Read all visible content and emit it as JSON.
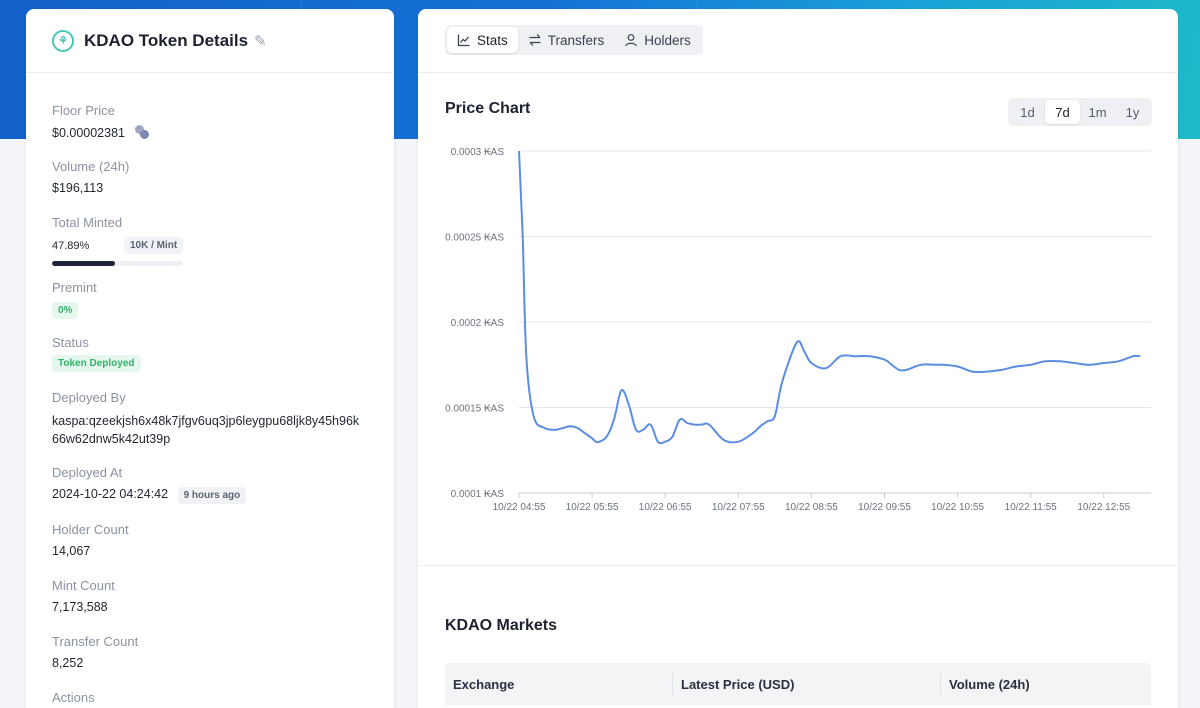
{
  "left": {
    "title": "KDAO Token Details",
    "floor_price": {
      "label": "Floor Price",
      "value": "$0.00002381"
    },
    "volume": {
      "label": "Volume (24h)",
      "value": "$196,113"
    },
    "total_minted": {
      "label": "Total Minted",
      "percent": "47.89%",
      "fraction": 0.4789,
      "badge": "10K / Mint"
    },
    "premint": {
      "label": "Premint",
      "badge": "0%"
    },
    "status": {
      "label": "Status",
      "badge": "Token Deployed"
    },
    "deployed_by": {
      "label": "Deployed By",
      "line1": "kaspa:qzeekjsh6x48k7jfgv6uq3jp6leygpu68ljk8y45h96k",
      "line2": "66w62dnw5k42ut39p"
    },
    "deployed_at": {
      "label": "Deployed At",
      "value": "2024-10-22 04:24:42",
      "badge": "9 hours ago"
    },
    "holder_count": {
      "label": "Holder Count",
      "value": "14,067"
    },
    "mint_count": {
      "label": "Mint Count",
      "value": "7,173,588"
    },
    "transfer_count": {
      "label": "Transfer Count",
      "value": "8,252"
    },
    "actions": {
      "label": "Actions"
    }
  },
  "tabs": [
    {
      "label": "Stats",
      "icon": "chart-line-icon",
      "active": true
    },
    {
      "label": "Transfers",
      "icon": "arrows-exchange-icon",
      "active": false
    },
    {
      "label": "Holders",
      "icon": "user-icon",
      "active": false
    }
  ],
  "chart_section": {
    "title": "Price Chart",
    "ranges": [
      "1d",
      "7d",
      "1m",
      "1y"
    ],
    "active_range": "7d"
  },
  "chart_data": {
    "type": "line",
    "color": "#5b8de0",
    "ylim": [
      0.0001,
      0.0003
    ],
    "y_ticks": [
      "0.0001 ₭AS",
      "0.00015 ₭AS",
      "0.0002 ₭AS",
      "0.00025 ₭AS",
      "0.0003 ₭AS"
    ],
    "x_ticks": [
      "10/22 04:55",
      "10/22 05:55",
      "10/22 06:55",
      "10/22 07:55",
      "10/22 08:55",
      "10/22 09:55",
      "10/22 10:55",
      "10/22 11:55",
      "10/22 12:55"
    ],
    "grid": true,
    "x": [
      0,
      0.05,
      0.1,
      0.2,
      0.35,
      0.5,
      0.6,
      0.7,
      0.8,
      0.9,
      1.0,
      1.05,
      1.1,
      1.2,
      1.3,
      1.4,
      1.5,
      1.6,
      1.7,
      1.8,
      1.9,
      2.0,
      2.1,
      2.2,
      2.3,
      2.4,
      2.5,
      2.6,
      2.8,
      3.0,
      3.2,
      3.3,
      3.4,
      3.5,
      3.6,
      3.8,
      3.9,
      4.0,
      4.2,
      4.4,
      4.6,
      4.8,
      5.0,
      5.1,
      5.2,
      5.3,
      5.5,
      5.7,
      5.8,
      6.0,
      6.2,
      6.4,
      6.6,
      6.8,
      7.0,
      7.2,
      7.4,
      7.6,
      7.8,
      8.0,
      8.2,
      8.4,
      8.5
    ],
    "y": [
      0.0003,
      0.00025,
      0.00018,
      0.000145,
      0.000138,
      0.000137,
      0.000138,
      0.000139,
      0.000138,
      0.000135,
      0.000132,
      0.00013,
      0.00013,
      0.000133,
      0.000143,
      0.00016,
      0.000152,
      0.000137,
      0.000137,
      0.00014,
      0.00013,
      0.00013,
      0.000133,
      0.000143,
      0.000141,
      0.00014,
      0.00014,
      0.00014,
      0.000131,
      0.00013,
      0.000135,
      0.000139,
      0.000142,
      0.000145,
      0.000165,
      0.000188,
      0.000183,
      0.000176,
      0.000173,
      0.00018,
      0.00018,
      0.00018,
      0.000178,
      0.000175,
      0.000172,
      0.000172,
      0.000175,
      0.000175,
      0.000175,
      0.000174,
      0.000171,
      0.000171,
      0.000172,
      0.000174,
      0.000175,
      0.000177,
      0.000177,
      0.000176,
      0.000175,
      0.000176,
      0.000177,
      0.00018,
      0.00018
    ]
  },
  "markets": {
    "title": "KDAO Markets",
    "columns": [
      "Exchange",
      "Latest Price (USD)",
      "Volume (24h)"
    ]
  }
}
